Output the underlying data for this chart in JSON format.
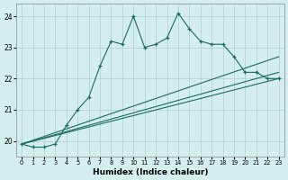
{
  "xlabel": "Humidex (Indice chaleur)",
  "bg_color": "#d4eeed",
  "grid_color": "#aacfcf",
  "line_color": "#1a6b5a",
  "xlim": [
    -0.5,
    23.5
  ],
  "ylim": [
    19.5,
    24.4
  ],
  "yticks": [
    20,
    21,
    22,
    23,
    24
  ],
  "xticks": [
    0,
    1,
    2,
    3,
    4,
    5,
    6,
    7,
    8,
    9,
    10,
    11,
    12,
    13,
    14,
    15,
    16,
    17,
    18,
    19,
    20,
    21,
    22,
    23
  ],
  "series1_x": [
    0,
    1,
    2,
    3,
    4,
    5,
    6,
    7,
    8,
    9,
    10,
    11,
    12,
    13,
    14,
    15,
    16,
    17,
    18,
    19,
    20,
    21,
    22,
    23
  ],
  "series1_y": [
    19.9,
    19.8,
    19.8,
    19.9,
    20.5,
    21.0,
    21.4,
    22.4,
    23.2,
    23.1,
    24.0,
    23.0,
    23.1,
    23.3,
    24.1,
    23.6,
    23.2,
    23.1,
    23.1,
    22.7,
    22.2,
    22.2,
    22.0,
    22.0
  ],
  "line1_x": [
    0,
    23
  ],
  "line1_y": [
    19.9,
    22.7
  ],
  "line2_x": [
    0,
    23
  ],
  "line2_y": [
    19.9,
    22.2
  ],
  "line3_x": [
    0,
    23
  ],
  "line3_y": [
    19.9,
    22.0
  ]
}
